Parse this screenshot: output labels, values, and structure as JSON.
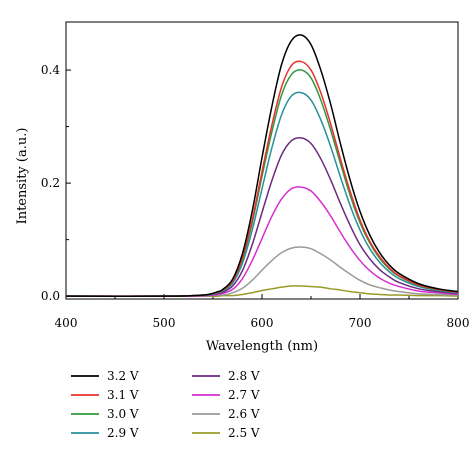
{
  "chart_data": {
    "type": "line",
    "title": "",
    "xlabel": "Wavelength (nm)",
    "ylabel": "Intensity (a.u.)",
    "xlim": [
      400,
      800
    ],
    "ylim": [
      -0.005,
      0.485
    ],
    "xticks": [
      400,
      500,
      600,
      700,
      800
    ],
    "xtick_labels": [
      "400",
      "500",
      "600",
      "700",
      "800"
    ],
    "yticks": [
      0.0,
      0.2,
      0.4
    ],
    "ytick_labels": [
      "0.0",
      "0.2",
      "0.4"
    ],
    "grid": false,
    "legend_position": "below",
    "x": [
      400,
      500,
      530,
      545,
      555,
      560,
      570,
      580,
      590,
      600,
      610,
      620,
      630,
      640,
      650,
      660,
      670,
      680,
      690,
      700,
      710,
      720,
      730,
      740,
      760,
      780,
      800
    ],
    "series": [
      {
        "name": "3.2 V",
        "color": "#000000",
        "values": [
          0,
          0,
          0.001,
          0.003,
          0.008,
          0.012,
          0.03,
          0.075,
          0.15,
          0.245,
          0.335,
          0.41,
          0.452,
          0.462,
          0.445,
          0.4,
          0.34,
          0.27,
          0.205,
          0.15,
          0.108,
          0.077,
          0.055,
          0.04,
          0.022,
          0.013,
          0.008
        ]
      },
      {
        "name": "3.1 V",
        "color": "#e8322d",
        "values": [
          0,
          0,
          0.001,
          0.003,
          0.007,
          0.011,
          0.027,
          0.068,
          0.135,
          0.22,
          0.302,
          0.37,
          0.408,
          0.415,
          0.4,
          0.36,
          0.305,
          0.243,
          0.185,
          0.135,
          0.097,
          0.07,
          0.05,
          0.036,
          0.02,
          0.012,
          0.007
        ]
      },
      {
        "name": "3.0 V",
        "color": "#2e9a3d",
        "values": [
          0,
          0,
          0.001,
          0.003,
          0.007,
          0.01,
          0.026,
          0.065,
          0.13,
          0.212,
          0.29,
          0.356,
          0.392,
          0.4,
          0.386,
          0.347,
          0.294,
          0.235,
          0.178,
          0.13,
          0.094,
          0.067,
          0.048,
          0.035,
          0.019,
          0.011,
          0.007
        ]
      },
      {
        "name": "2.9 V",
        "color": "#2a8f9a",
        "values": [
          0,
          0,
          0.001,
          0.002,
          0.006,
          0.009,
          0.023,
          0.058,
          0.117,
          0.19,
          0.262,
          0.321,
          0.354,
          0.36,
          0.347,
          0.312,
          0.265,
          0.211,
          0.16,
          0.117,
          0.084,
          0.06,
          0.043,
          0.031,
          0.017,
          0.01,
          0.006
        ]
      },
      {
        "name": "2.8 V",
        "color": "#6b2a7f",
        "values": [
          0,
          0,
          0.001,
          0.002,
          0.005,
          0.007,
          0.018,
          0.045,
          0.091,
          0.148,
          0.204,
          0.25,
          0.275,
          0.28,
          0.27,
          0.243,
          0.206,
          0.164,
          0.125,
          0.091,
          0.066,
          0.047,
          0.034,
          0.024,
          0.013,
          0.008,
          0.005
        ]
      },
      {
        "name": "2.7 V",
        "color": "#d42fd0",
        "values": [
          0,
          0,
          0,
          0.001,
          0.003,
          0.005,
          0.012,
          0.031,
          0.063,
          0.102,
          0.141,
          0.172,
          0.19,
          0.193,
          0.186,
          0.167,
          0.142,
          0.113,
          0.086,
          0.063,
          0.045,
          0.032,
          0.023,
          0.017,
          0.009,
          0.006,
          0.003
        ]
      },
      {
        "name": "2.6 V",
        "color": "#9a9a9a",
        "values": [
          0,
          0,
          0,
          0.001,
          0.002,
          0.002,
          0.006,
          0.014,
          0.028,
          0.046,
          0.063,
          0.077,
          0.085,
          0.087,
          0.084,
          0.075,
          0.064,
          0.051,
          0.039,
          0.028,
          0.02,
          0.015,
          0.011,
          0.008,
          0.004,
          0.003,
          0.002
        ]
      },
      {
        "name": "2.5 V",
        "color": "#9a9a2a",
        "values": [
          0,
          0,
          0,
          0,
          0,
          0.001,
          0.001,
          0.003,
          0.006,
          0.01,
          0.013,
          0.016,
          0.018,
          0.018,
          0.017,
          0.016,
          0.013,
          0.011,
          0.008,
          0.006,
          0.004,
          0.003,
          0.002,
          0.002,
          0.001,
          0.001,
          0
        ]
      }
    ]
  }
}
